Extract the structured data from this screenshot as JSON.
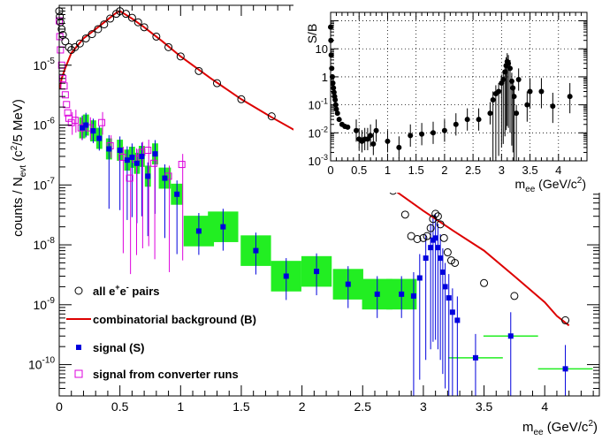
{
  "chart_data": [
    {
      "type": "scatter",
      "xlabel": "m_ee (GeV/c²)",
      "ylabel": "counts / N_evt (c²/5 MeV)",
      "y_scale": "log",
      "xlim": [
        0,
        4.45
      ],
      "ylim": [
        3e-11,
        0.0001
      ],
      "x_ticks": [
        "0",
        "0.5",
        "1",
        "1.5",
        "2",
        "2.5",
        "3",
        "3.5",
        "4"
      ],
      "y_ticks": [
        "10^-10",
        "10^-9",
        "10^-8",
        "10^-7",
        "10^-6",
        "10^-5"
      ],
      "legend_position": "bottom-left",
      "series": [
        {
          "name": "all e⁺e⁻ pairs",
          "marker": "open-circle",
          "color": "#000000",
          "points": [
            [
              0.0,
              8e-05
            ],
            [
              0.005,
              6.5e-05
            ],
            [
              0.01,
              5.2e-05
            ],
            [
              0.02,
              4e-05
            ],
            [
              0.03,
              3.2e-05
            ],
            [
              0.05,
              2.5e-05
            ],
            [
              0.08,
              2e-05
            ],
            [
              0.1,
              1.8e-05
            ],
            [
              0.13,
              2e-05
            ],
            [
              0.17,
              2.3e-05
            ],
            [
              0.22,
              2.8e-05
            ],
            [
              0.27,
              3.3e-05
            ],
            [
              0.32,
              4e-05
            ],
            [
              0.37,
              4.8e-05
            ],
            [
              0.42,
              6e-05
            ],
            [
              0.47,
              7.2e-05
            ],
            [
              0.5,
              8e-05
            ],
            [
              0.55,
              7.2e-05
            ],
            [
              0.6,
              6.2e-05
            ],
            [
              0.65,
              5.2e-05
            ],
            [
              0.7,
              4.3e-05
            ],
            [
              0.8,
              3e-05
            ],
            [
              0.9,
              2e-05
            ],
            [
              1.0,
              1.4e-05
            ],
            [
              1.15,
              8e-06
            ],
            [
              1.3,
              5e-06
            ],
            [
              1.5,
              2.7e-06
            ],
            [
              1.75,
              1.4e-06
            ],
            [
              2.0,
              7e-07
            ],
            [
              2.25,
              3.6e-07
            ],
            [
              2.5,
              1.7e-07
            ],
            [
              2.75,
              8e-08
            ],
            [
              2.85,
              3.2e-08
            ],
            [
              2.9,
              1.4e-08
            ],
            [
              2.95,
              1.25e-08
            ],
            [
              3.0,
              1.3e-08
            ],
            [
              3.03,
              1.4e-08
            ],
            [
              3.06,
              1.9e-08
            ],
            [
              3.08,
              2.7e-08
            ],
            [
              3.1,
              3.3e-08
            ],
            [
              3.12,
              3e-08
            ],
            [
              3.14,
              2.2e-08
            ],
            [
              3.17,
              1.3e-08
            ],
            [
              3.2,
              7.5e-09
            ],
            [
              3.23,
              5.5e-09
            ],
            [
              3.26,
              5e-09
            ],
            [
              3.5,
              2.3e-09
            ],
            [
              3.75,
              1.4e-09
            ],
            [
              4.17,
              5.5e-10
            ]
          ]
        },
        {
          "name": "combinatorial background (B)",
          "marker": "line",
          "color": "#dd0000",
          "points": [
            [
              0.005,
              4e-06
            ],
            [
              0.02,
              6e-06
            ],
            [
              0.05,
              9e-06
            ],
            [
              0.1,
              1.6e-05
            ],
            [
              0.2,
              2.8e-05
            ],
            [
              0.3,
              4e-05
            ],
            [
              0.4,
              5.8e-05
            ],
            [
              0.47,
              7.5e-05
            ],
            [
              0.5,
              8e-05
            ],
            [
              0.6,
              6e-05
            ],
            [
              0.7,
              4.3e-05
            ],
            [
              0.85,
              2.5e-05
            ],
            [
              1.0,
              1.4e-05
            ],
            [
              1.25,
              6e-06
            ],
            [
              1.5,
              2.7e-06
            ],
            [
              1.75,
              1.35e-06
            ],
            [
              2.0,
              7e-07
            ],
            [
              2.25,
              3.5e-07
            ],
            [
              2.5,
              1.7e-07
            ],
            [
              2.75,
              8.5e-08
            ],
            [
              3.0,
              3.7e-08
            ],
            [
              3.25,
              1.7e-08
            ],
            [
              3.5,
              8e-09
            ],
            [
              3.75,
              3e-09
            ],
            [
              4.0,
              1.1e-09
            ],
            [
              4.1,
              6.5e-10
            ],
            [
              4.2,
              4.5e-10
            ]
          ]
        },
        {
          "name": "signal (S)",
          "marker": "filled-square",
          "color": "#0000dd",
          "points": [
            [
              0.19,
              9e-07
            ],
            [
              0.22,
              1e-06
            ],
            [
              0.28,
              8e-07
            ],
            [
              0.33,
              6e-07
            ],
            [
              0.41,
              4e-07
            ],
            [
              0.5,
              3.8e-07
            ],
            [
              0.56,
              2.6e-07
            ],
            [
              0.6,
              2.9e-07
            ],
            [
              0.64,
              2.3e-07
            ],
            [
              0.68,
              3e-07
            ],
            [
              0.73,
              1.4e-07
            ],
            [
              0.79,
              3.3e-07
            ],
            [
              0.87,
              1.3e-07
            ],
            [
              0.97,
              7e-08
            ],
            [
              1.15,
              1.7e-08
            ],
            [
              1.35,
              2e-08
            ],
            [
              1.62,
              8e-09
            ],
            [
              1.87,
              3e-09
            ],
            [
              2.12,
              3.6e-09
            ],
            [
              2.38,
              2.2e-09
            ],
            [
              2.62,
              1.5e-09
            ],
            [
              2.82,
              1.5e-09
            ],
            [
              2.92,
              1.4e-09
            ],
            [
              2.97,
              2.8e-09
            ],
            [
              3.02,
              6e-09
            ],
            [
              3.06,
              9e-09
            ],
            [
              3.08,
              1.2e-08
            ],
            [
              3.1,
              1.3e-08
            ],
            [
              3.12,
              9e-09
            ],
            [
              3.14,
              6e-09
            ],
            [
              3.16,
              3.5e-09
            ],
            [
              3.18,
              2e-09
            ],
            [
              3.21,
              1.3e-09
            ],
            [
              3.24,
              7.5e-10
            ],
            [
              3.28,
              5.5e-10
            ],
            [
              3.43,
              1.3e-10
            ],
            [
              3.72,
              3e-10
            ],
            [
              4.17,
              8.5e-11
            ]
          ]
        },
        {
          "name": "signal from converter runs",
          "marker": "open-square",
          "color": "#dd00dd",
          "points": [
            [
              0.0,
              5.5e-05
            ],
            [
              0.005,
              3e-05
            ],
            [
              0.01,
              1.8e-05
            ],
            [
              0.02,
              1e-05
            ],
            [
              0.03,
              6e-06
            ],
            [
              0.04,
              4.5e-06
            ],
            [
              0.05,
              3.2e-06
            ],
            [
              0.06,
              2.2e-06
            ],
            [
              0.07,
              1.6e-06
            ],
            [
              0.08,
              1.3e-06
            ],
            [
              0.1,
              1.1e-06
            ],
            [
              0.13,
              1.2e-06
            ],
            [
              0.18,
              9e-07
            ],
            [
              0.25,
              9e-07
            ],
            [
              0.35,
              1.1e-06
            ],
            [
              0.42,
              4.5e-07
            ],
            [
              0.52,
              2.9e-07
            ],
            [
              0.58,
              1.3e-07
            ],
            [
              0.63,
              2.7e-07
            ],
            [
              0.68,
              3.5e-07
            ],
            [
              0.73,
              3.8e-07
            ],
            [
              0.78,
              2.3e-07
            ],
            [
              0.9,
              1.4e-07
            ],
            [
              1.01,
              2.2e-07
            ]
          ]
        }
      ]
    },
    {
      "type": "scatter",
      "ylabel": "S/B",
      "xlabel": "m_ee (GeV/c²)",
      "y_scale": "log",
      "xlim": [
        0,
        4.5
      ],
      "ylim": [
        0.001,
        200
      ],
      "x_ticks": [
        "0",
        "0.5",
        "1",
        "1.5",
        "2",
        "2.5",
        "3",
        "3.5",
        "4"
      ],
      "y_ticks": [
        "10^-3",
        "10^-2",
        "10^-1",
        "1",
        "10"
      ],
      "grid": true,
      "series": [
        {
          "marker": "filled-circle",
          "color": "#000000",
          "points": [
            [
              0.0,
              60
            ],
            [
              0.005,
              20
            ],
            [
              0.01,
              6
            ],
            [
              0.02,
              2
            ],
            [
              0.03,
              1.0
            ],
            [
              0.04,
              0.6
            ],
            [
              0.05,
              0.4
            ],
            [
              0.06,
              0.28
            ],
            [
              0.07,
              0.2
            ],
            [
              0.08,
              0.15
            ],
            [
              0.09,
              0.1
            ],
            [
              0.1,
              0.07
            ],
            [
              0.12,
              0.05
            ],
            [
              0.15,
              0.03
            ],
            [
              0.2,
              0.02
            ],
            [
              0.25,
              0.017
            ],
            [
              0.3,
              0.016
            ],
            [
              0.45,
              0.012
            ],
            [
              0.5,
              0.006
            ],
            [
              0.55,
              0.005
            ],
            [
              0.6,
              0.006
            ],
            [
              0.65,
              0.006
            ],
            [
              0.7,
              0.008
            ],
            [
              0.75,
              0.004
            ],
            [
              0.8,
              0.012
            ],
            [
              1.0,
              0.005
            ],
            [
              1.2,
              0.003
            ],
            [
              1.4,
              0.008
            ],
            [
              1.6,
              0.009
            ],
            [
              1.8,
              0.01
            ],
            [
              2.0,
              0.012
            ],
            [
              2.2,
              0.02
            ],
            [
              2.4,
              0.03
            ],
            [
              2.6,
              0.03
            ],
            [
              2.8,
              0.05
            ],
            [
              2.85,
              0.15
            ],
            [
              2.9,
              0.25
            ],
            [
              2.95,
              0.3
            ],
            [
              3.0,
              0.6
            ],
            [
              3.03,
              0.8
            ],
            [
              3.06,
              1.5
            ],
            [
              3.08,
              2.5
            ],
            [
              3.1,
              3.5
            ],
            [
              3.12,
              3.0
            ],
            [
              3.15,
              2.0
            ],
            [
              3.18,
              0.7
            ],
            [
              3.2,
              0.4
            ],
            [
              3.22,
              0.2
            ],
            [
              3.26,
              0.05
            ],
            [
              3.3,
              0.8
            ],
            [
              3.45,
              0.1
            ],
            [
              3.5,
              0.3
            ],
            [
              3.7,
              0.3
            ],
            [
              3.9,
              0.09
            ],
            [
              4.2,
              0.2
            ]
          ]
        }
      ]
    }
  ],
  "legend": [
    {
      "label": "all e",
      "sup1": "+",
      "mid": "e",
      "sup2": "-",
      "tail": " pairs"
    },
    {
      "label": "combinatorial background (B)"
    },
    {
      "label": "signal (S)"
    },
    {
      "label": "signal from converter runs"
    }
  ],
  "main": {
    "ylabel_main": "counts / N",
    "ylabel_sub": "evt",
    "ylabel_tail": " (c",
    "ylabel_sup": "2",
    "ylabel_end": "/5 MeV)",
    "xlabel_main": "m",
    "xlabel_sub": "ee",
    "xlabel_tail": " (GeV/c",
    "xlabel_sup": "2",
    "xlabel_end": ")",
    "tick_base": "10",
    "ytick_exps": [
      "-10",
      "-9",
      "-8",
      "-7",
      "-6",
      "-5"
    ],
    "xtick_labels": [
      "0",
      "0.5",
      "1",
      "1.5",
      "2",
      "2.5",
      "3",
      "3.5",
      "4"
    ]
  },
  "inset": {
    "ylabel": "S/B",
    "xlabel_main": "m",
    "xlabel_sub": "ee",
    "xlabel_tail": " (GeV/c",
    "xlabel_sup": "2",
    "xlabel_end": ")",
    "ytick_labels": [
      {
        "base": "10",
        "exp": "-3"
      },
      {
        "base": "10",
        "exp": "-2"
      },
      {
        "base": "10",
        "exp": "-1"
      },
      {
        "base": "1",
        "exp": ""
      },
      {
        "base": "10",
        "exp": ""
      }
    ],
    "xtick_labels": [
      "0",
      "0.5",
      "1",
      "1.5",
      "2",
      "2.5",
      "3",
      "3.5",
      "4"
    ]
  },
  "colors": {
    "background": "#dd0000",
    "signal": "#0000dd",
    "converter": "#dd00dd",
    "syst_box": "#22ee22",
    "all_pairs": "#000000"
  }
}
